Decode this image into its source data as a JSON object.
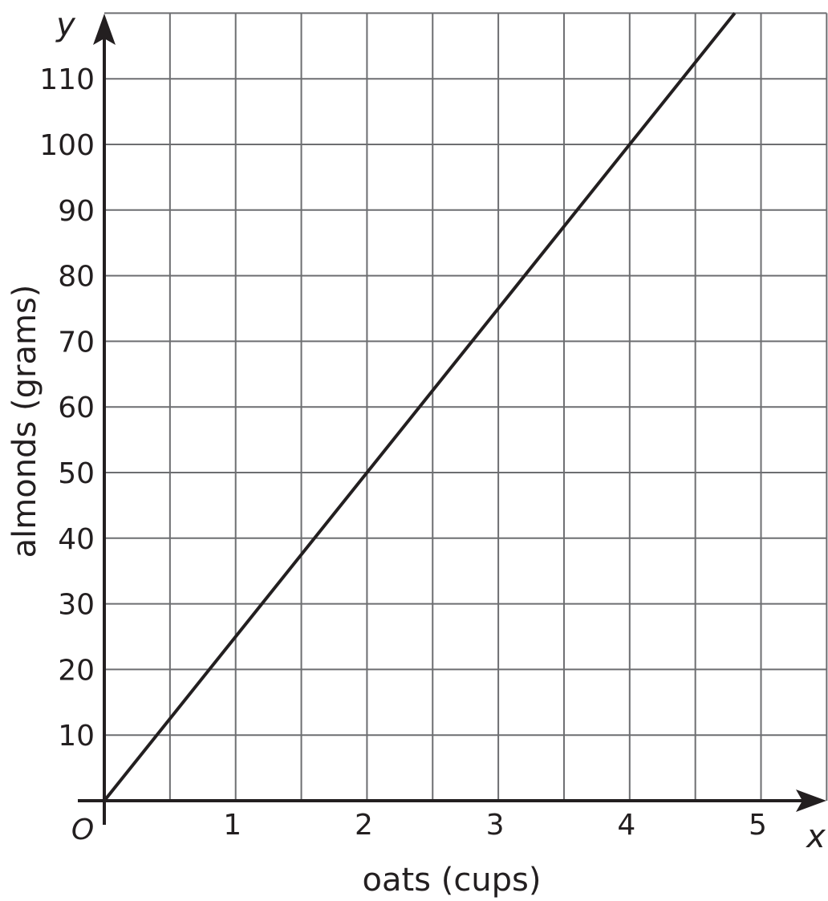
{
  "chart_data": {
    "type": "line",
    "title": "",
    "xlabel": "oats (cups)",
    "ylabel": "almonds (grams)",
    "x_axis_letter": "x",
    "y_axis_letter": "y",
    "origin_label": "O",
    "xlim": [
      0,
      5.5
    ],
    "ylim": [
      0,
      120
    ],
    "x_ticks": [
      1,
      2,
      3,
      4,
      5
    ],
    "x_tick_labels": [
      "1",
      "2",
      "3",
      "4",
      "5"
    ],
    "y_ticks": [
      10,
      20,
      30,
      40,
      50,
      60,
      70,
      80,
      90,
      100,
      110
    ],
    "y_tick_labels": [
      "10",
      "20",
      "30",
      "40",
      "50",
      "60",
      "70",
      "80",
      "90",
      "100",
      "110"
    ],
    "x_grid_step": 0.5,
    "y_grid_step": 10,
    "grid": true,
    "series": [
      {
        "x": [
          0,
          4.8
        ],
        "y": [
          0,
          120
        ]
      }
    ],
    "colors": {
      "grid": "#6d6e71",
      "axis": "#231f20",
      "line": "#231f20"
    }
  }
}
